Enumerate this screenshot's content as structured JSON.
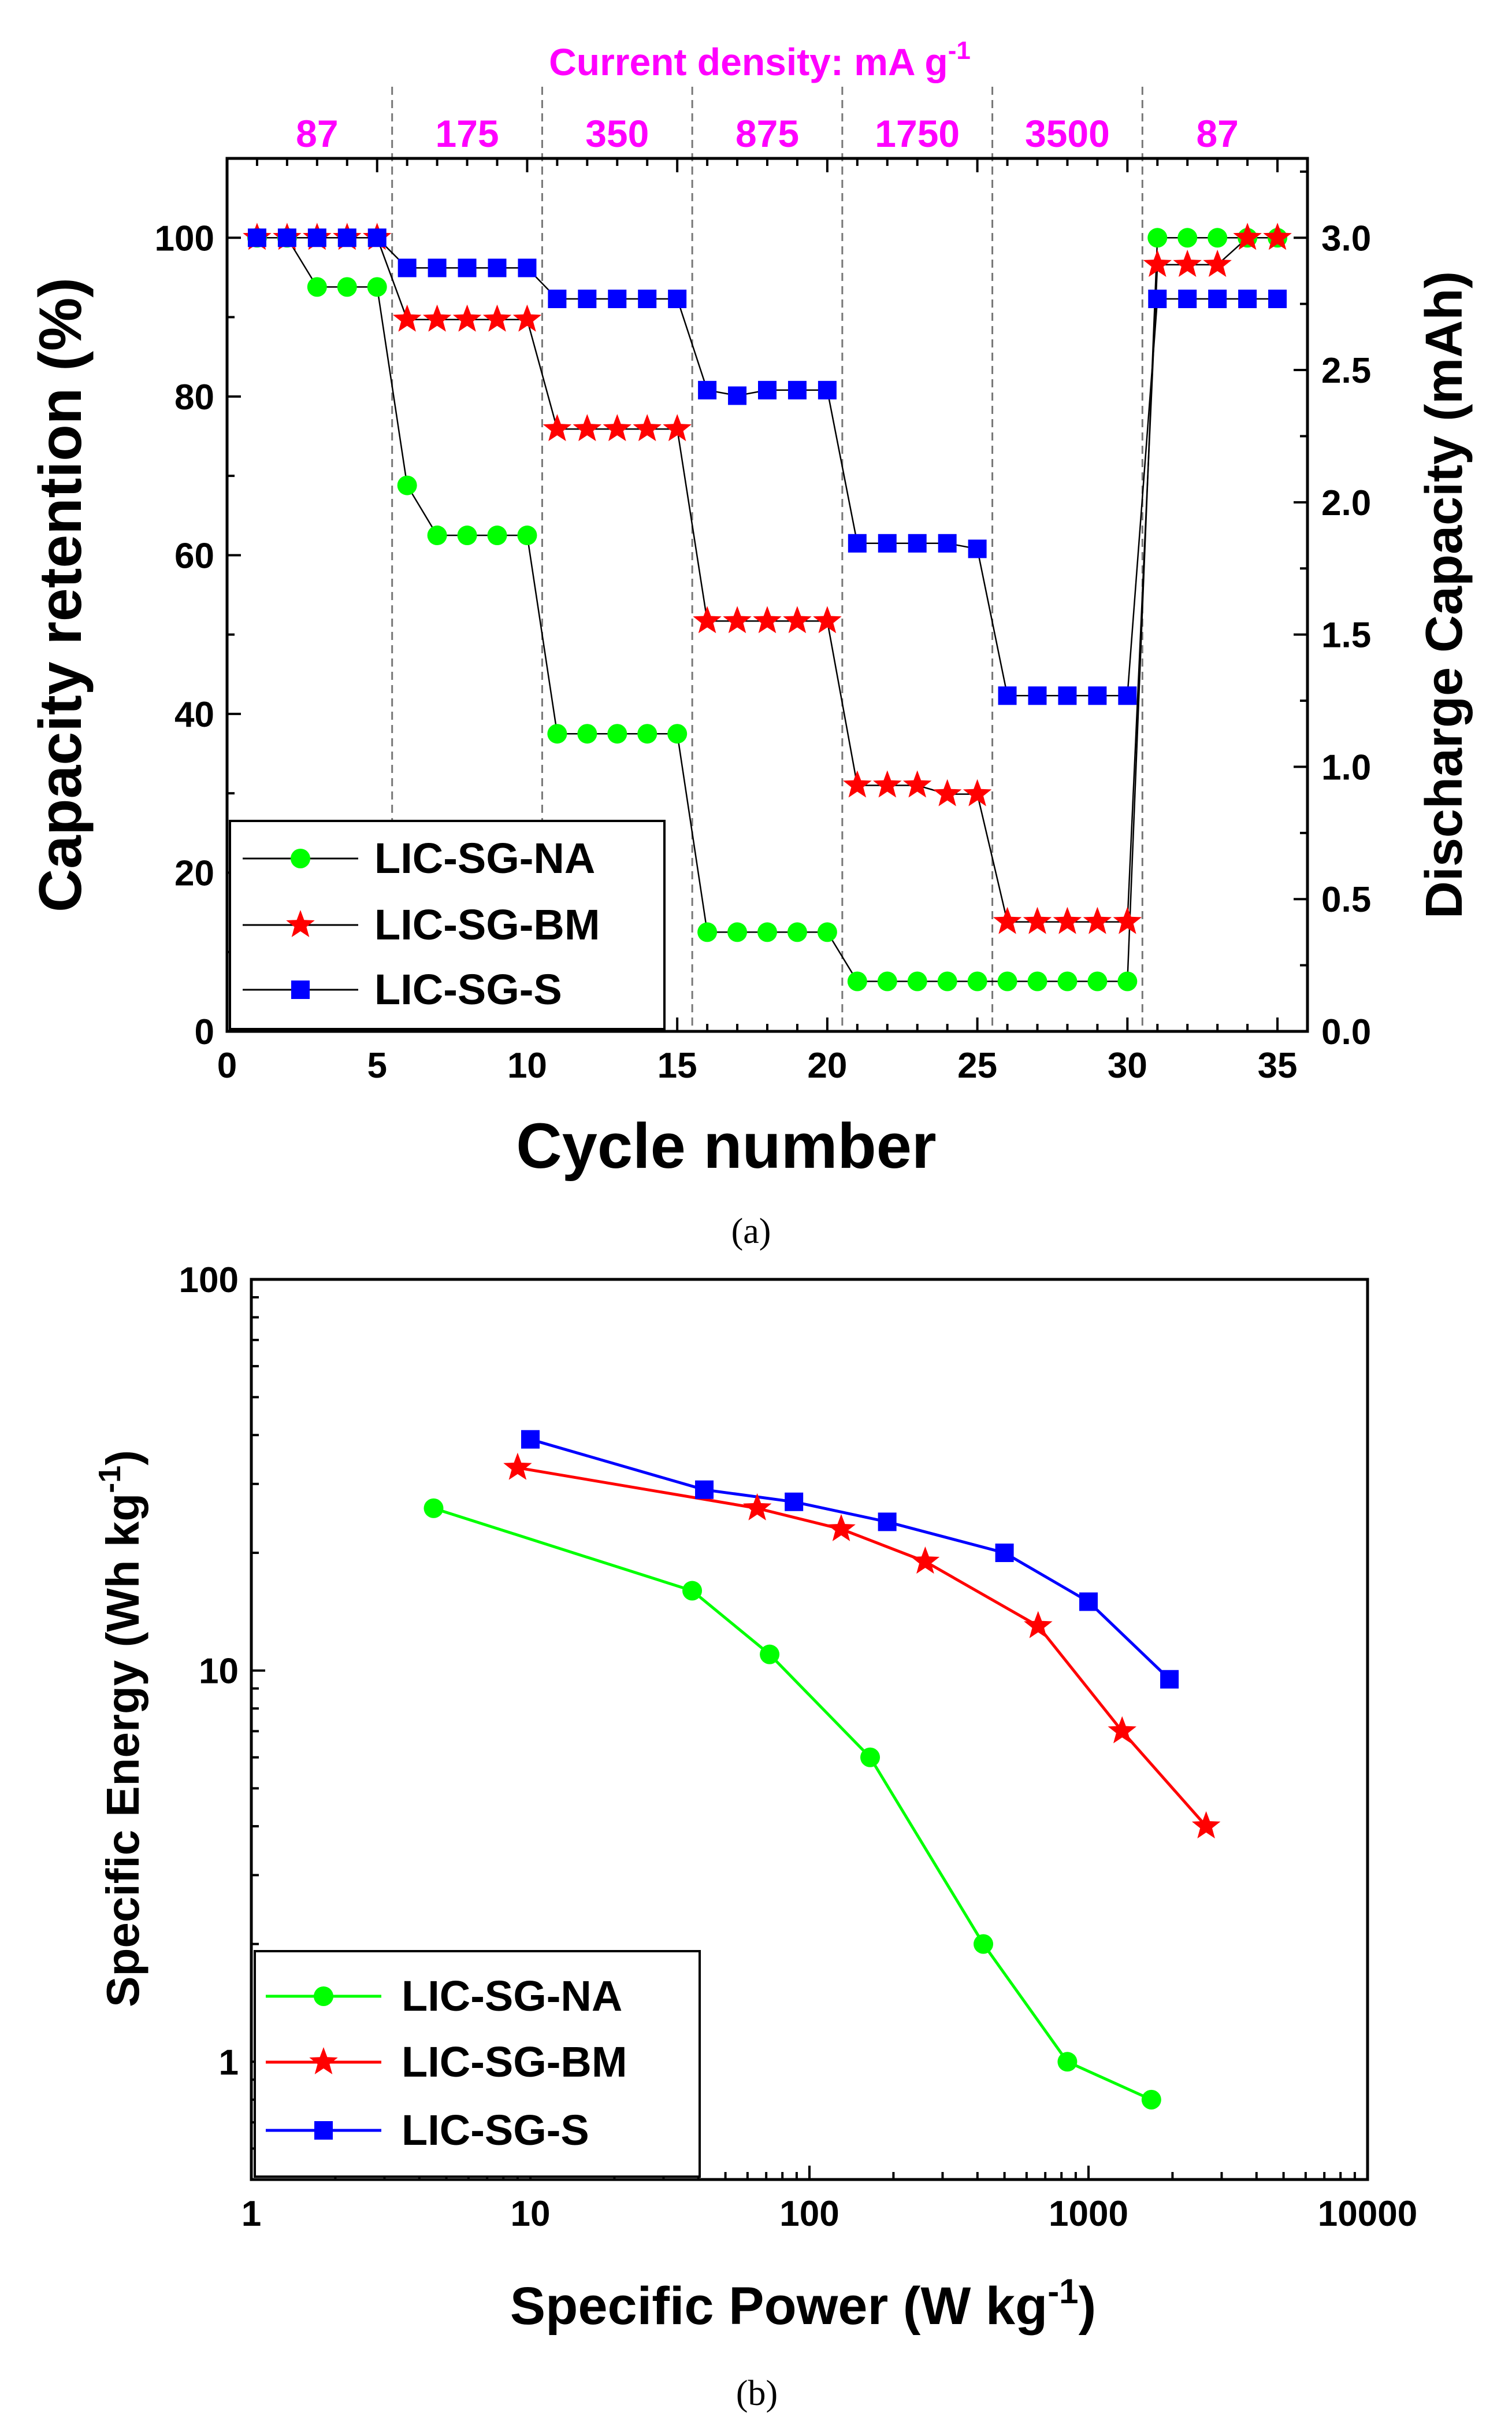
{
  "chart_data": [
    {
      "type": "scatter",
      "panel": "a",
      "caption": "(a)",
      "title": "Current density: mA g",
      "title_superscript": "-1",
      "xlabel": "Cycle number",
      "ylabel": "Capacity retention (%)",
      "y2label": "Discharge Capacity (mAh)",
      "xlim": [
        0,
        36
      ],
      "ylim": [
        0,
        110
      ],
      "y2lim": [
        0,
        3.3
      ],
      "xticks": [
        "0",
        "5",
        "10",
        "15",
        "20",
        "25",
        "30",
        "35"
      ],
      "yticks": [
        "0",
        "20",
        "40",
        "60",
        "80",
        "100"
      ],
      "y2ticks": [
        "0.0",
        "0.5",
        "1.0",
        "1.5",
        "2.0",
        "2.5",
        "3.0"
      ],
      "rate_boundaries": [
        5.5,
        10.5,
        15.5,
        20.5,
        25.5,
        30.5
      ],
      "rate_labels": [
        "87",
        "175",
        "350",
        "875",
        "1750",
        "3500",
        "87"
      ],
      "legend": {
        "position": "bottom-left",
        "entries": [
          "LIC-SG-NA",
          "LIC-SG-BM",
          "LIC-SG-S"
        ]
      },
      "x": [
        1,
        2,
        3,
        4,
        5,
        6,
        7,
        8,
        9,
        10,
        11,
        12,
        13,
        14,
        15,
        16,
        17,
        18,
        19,
        20,
        21,
        22,
        23,
        24,
        25,
        26,
        27,
        28,
        29,
        30,
        31,
        32,
        33,
        34,
        35
      ],
      "series": [
        {
          "name": "LIC-SG-NA",
          "color": "#00ff00",
          "marker": "circle",
          "values": [
            100,
            100,
            93.8,
            93.8,
            93.8,
            68.8,
            62.5,
            62.5,
            62.5,
            62.5,
            37.5,
            37.5,
            37.5,
            37.5,
            37.5,
            12.5,
            12.5,
            12.5,
            12.5,
            12.5,
            6.3,
            6.3,
            6.3,
            6.3,
            6.3,
            6.3,
            6.3,
            6.3,
            6.3,
            6.3,
            100,
            100,
            100,
            100,
            100
          ]
        },
        {
          "name": "LIC-SG-BM",
          "color": "#ff0000",
          "marker": "star",
          "values": [
            100,
            100,
            100,
            100,
            100,
            89.7,
            89.7,
            89.7,
            89.7,
            89.7,
            75.9,
            75.9,
            75.9,
            75.9,
            75.9,
            51.7,
            51.7,
            51.7,
            51.7,
            51.7,
            31,
            31,
            31,
            29.9,
            29.9,
            13.8,
            13.8,
            13.8,
            13.8,
            13.8,
            96.6,
            96.6,
            96.6,
            100,
            100
          ]
        },
        {
          "name": "LIC-SG-S",
          "color": "#0000ff",
          "marker": "square",
          "values": [
            100,
            100,
            100,
            100,
            100,
            96.2,
            96.2,
            96.2,
            96.2,
            96.2,
            92.3,
            92.3,
            92.3,
            92.3,
            92.3,
            80.8,
            80.1,
            80.8,
            80.8,
            80.8,
            61.5,
            61.5,
            61.5,
            61.5,
            60.8,
            42.3,
            42.3,
            42.3,
            42.3,
            42.3,
            92.3,
            92.3,
            92.3,
            92.3,
            92.3
          ]
        }
      ]
    },
    {
      "type": "line",
      "panel": "b",
      "caption": "(b)",
      "scale": "log-log",
      "xlabel": "Specific Power (W kg",
      "xlabel_superscript": "-1",
      "xlabel_end": ")",
      "ylabel": "Specific Energy (Wh kg",
      "ylabel_superscript": "-1",
      "ylabel_end": ")",
      "xlim": [
        1,
        10000
      ],
      "ylim": [
        0.5,
        100
      ],
      "xticks": [
        "1",
        "10",
        "100",
        "1000",
        "10000"
      ],
      "yticks": [
        "1",
        "10",
        "100"
      ],
      "legend": {
        "position": "bottom-left",
        "entries": [
          "LIC-SG-NA",
          "LIC-SG-BM",
          "LIC-SG-S"
        ]
      },
      "series": [
        {
          "name": "LIC-SG-NA",
          "color": "#00ff00",
          "marker": "circle",
          "x": [
            4.5,
            38,
            72,
            165,
            420,
            840,
            1680
          ],
          "y": [
            26,
            16,
            11,
            6,
            2,
            1,
            0.8
          ]
        },
        {
          "name": "LIC-SG-BM",
          "color": "#ff0000",
          "marker": "star",
          "x": [
            9,
            65,
            130,
            260,
            660,
            1320,
            2640
          ],
          "y": [
            33,
            26,
            23,
            19,
            13,
            7,
            4
          ]
        },
        {
          "name": "LIC-SG-S",
          "color": "#0000ff",
          "marker": "square",
          "x": [
            10,
            42,
            88,
            190,
            500,
            1000,
            1950
          ],
          "y": [
            39,
            29,
            27,
            24,
            20,
            15,
            9.5
          ]
        }
      ]
    }
  ]
}
